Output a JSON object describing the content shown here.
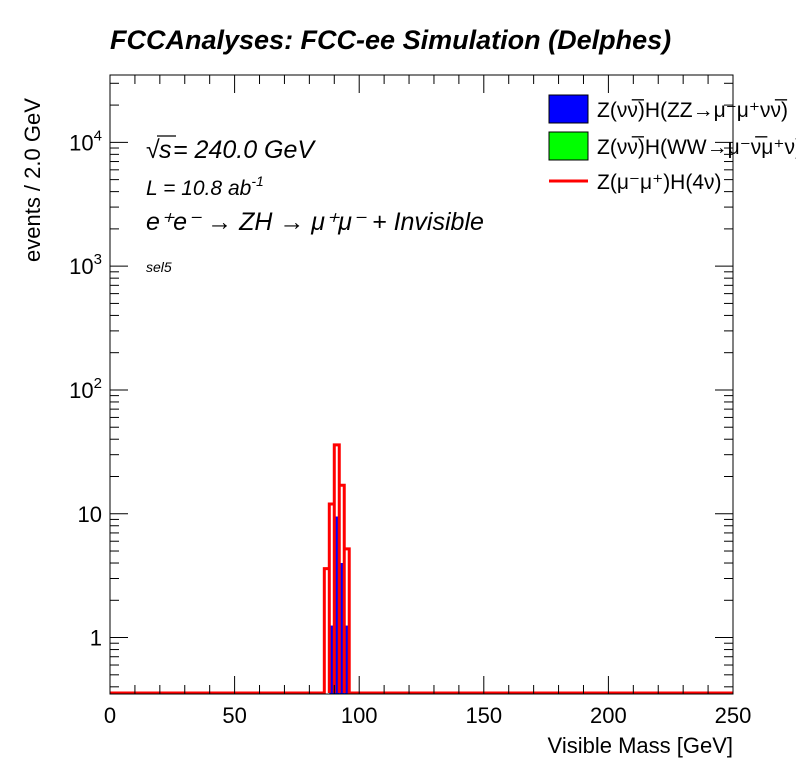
{
  "chart_data": {
    "type": "histogram",
    "title": "FCCAnalyses: FCC-ee Simulation (Delphes)",
    "xlabel": "Visible Mass [GeV]",
    "ylabel": "events / 2.0 GeV",
    "xlim": [
      0,
      250
    ],
    "ylim": [
      0.35,
      35000
    ],
    "yscale": "log",
    "bin_width": 2.0,
    "x_ticks": [
      "0",
      "50",
      "100",
      "150",
      "200",
      "250"
    ],
    "y_ticks": [
      {
        "value": 1,
        "label": "1"
      },
      {
        "value": 10,
        "label": "10"
      },
      {
        "value": 100,
        "label": "10",
        "exp": "2"
      },
      {
        "value": 1000,
        "label": "10",
        "exp": "3"
      },
      {
        "value": 10000,
        "label": "10",
        "exp": "4"
      }
    ],
    "annotations": {
      "sqrt_s": "s",
      "energy": " = 240.0 GeV",
      "lumi": "L = 10.8 ab",
      "lumi_exp": "-1",
      "process": "e⁺e⁻ → ZH → μ⁺μ⁻ + Invisible",
      "selection": "sel5"
    },
    "legend_position": "top-right",
    "series": [
      {
        "name": "Z(νν̅)H(ZZ→μ⁻μ⁺νν̅)",
        "style": "filled",
        "color": "#0000ff",
        "bins": [
          {
            "x0": 88,
            "x1": 90,
            "y": 1.25
          },
          {
            "x0": 90,
            "x1": 92,
            "y": 9.5
          },
          {
            "x0": 92,
            "x1": 94,
            "y": 4.0
          },
          {
            "x0": 94,
            "x1": 96,
            "y": 1.25
          }
        ]
      },
      {
        "name": "Z(νν̅)H(WW→μ⁻ν̅μ⁺ν)",
        "style": "filled",
        "color": "#00ff00",
        "bins": []
      },
      {
        "name": "Z(μ⁻μ⁺)H(4ν)",
        "style": "line",
        "color": "#ff0000",
        "bins": [
          {
            "x0": 86,
            "x1": 88,
            "y": 3.6
          },
          {
            "x0": 88,
            "x1": 90,
            "y": 12
          },
          {
            "x0": 90,
            "x1": 92,
            "y": 36
          },
          {
            "x0": 92,
            "x1": 94,
            "y": 17
          },
          {
            "x0": 94,
            "x1": 96,
            "y": 5.2
          }
        ]
      }
    ]
  }
}
